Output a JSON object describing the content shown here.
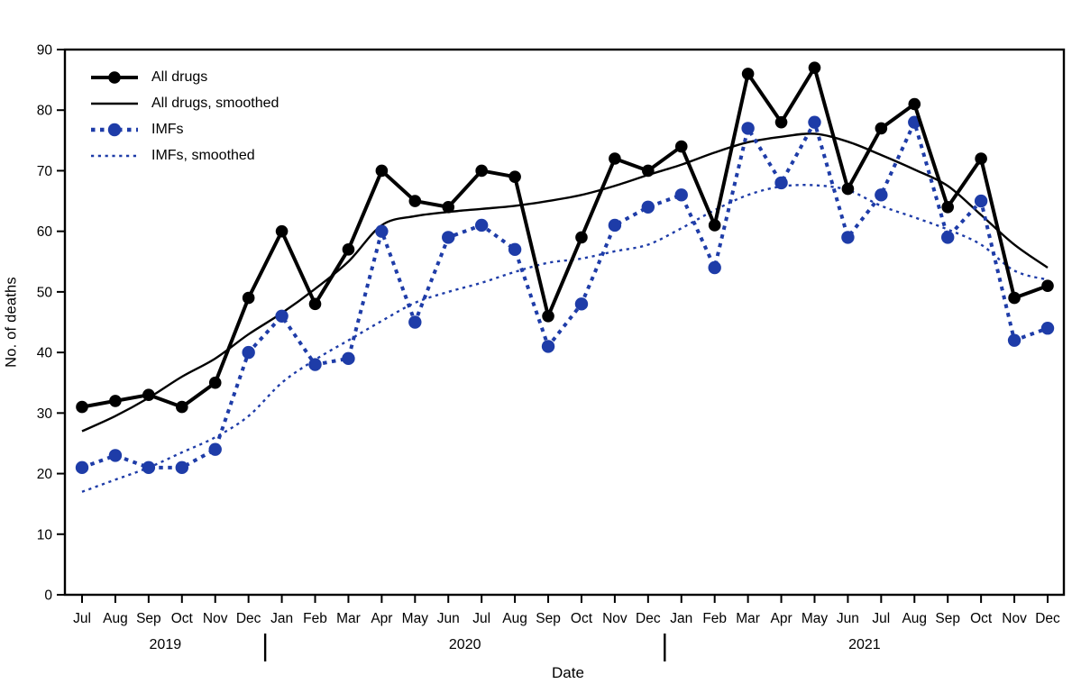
{
  "figure": {
    "y_axis_title": "No. of deaths",
    "x_axis_title": "Date"
  },
  "legend": {
    "items": [
      {
        "label": "All drugs"
      },
      {
        "label": "All drugs, smoothed"
      },
      {
        "label": "IMFs"
      },
      {
        "label": "IMFs, smoothed"
      }
    ]
  },
  "colors": {
    "black": "#000000",
    "imf_blue": "#1e3ca8"
  },
  "chart_data": {
    "type": "line",
    "title": "",
    "xlabel": "Date",
    "ylabel": "No. of deaths",
    "ylim": [
      0,
      90
    ],
    "y_ticks": [
      0,
      10,
      20,
      30,
      40,
      50,
      60,
      70,
      80,
      90
    ],
    "x_months": [
      "Jul",
      "Aug",
      "Sep",
      "Oct",
      "Nov",
      "Dec",
      "Jan",
      "Feb",
      "Mar",
      "Apr",
      "May",
      "Jun",
      "Jul",
      "Aug",
      "Sep",
      "Oct",
      "Nov",
      "Dec",
      "Jan",
      "Feb",
      "Mar",
      "Apr",
      "May",
      "Jun",
      "Jul",
      "Aug",
      "Sep",
      "Oct",
      "Nov",
      "Dec"
    ],
    "year_labels": [
      {
        "label": "2019",
        "at_month_index": 2.5
      },
      {
        "label": "2020",
        "at_month_index": 11.5
      },
      {
        "label": "2021",
        "at_month_index": 23.5
      }
    ],
    "year_separators_at_month_index": [
      5.5,
      17.5
    ],
    "legend_position": "top-left-inside",
    "grid": false,
    "series": [
      {
        "name": "All drugs",
        "color": "#000000",
        "line": "solid",
        "width": "thick",
        "markers": true,
        "values": [
          31,
          32,
          33,
          31,
          35,
          49,
          60,
          48,
          57,
          70,
          65,
          64,
          70,
          69,
          46,
          59,
          72,
          70,
          74,
          61,
          86,
          78,
          87,
          67,
          77,
          81,
          64,
          72,
          49,
          51
        ]
      },
      {
        "name": "All drugs, smoothed",
        "color": "#000000",
        "line": "solid",
        "width": "thin",
        "markers": false,
        "values": [
          27,
          29.5,
          32.5,
          36,
          39,
          43,
          46.5,
          50.5,
          55,
          61,
          62.5,
          63.2,
          63.7,
          64.2,
          65,
          66,
          67.5,
          69.3,
          71,
          73,
          74.7,
          75.6,
          76.1,
          74.8,
          72.6,
          70.2,
          67.5,
          62.7,
          57.8,
          54
        ]
      },
      {
        "name": "IMFs",
        "color": "#1e3ca8",
        "line": "dotted",
        "width": "thick",
        "markers": true,
        "values": [
          21,
          23,
          21,
          21,
          24,
          40,
          46,
          38,
          39,
          60,
          45,
          59,
          61,
          57,
          41,
          48,
          61,
          64,
          66,
          54,
          77,
          68,
          78,
          59,
          66,
          78,
          59,
          65,
          42,
          44
        ]
      },
      {
        "name": "IMFs, smoothed",
        "color": "#1e3ca8",
        "line": "dotted",
        "width": "thin",
        "markers": false,
        "values": [
          17,
          19,
          21,
          23.5,
          26,
          29.5,
          35,
          38.8,
          42,
          45.2,
          48.2,
          50,
          51.5,
          53.3,
          54.8,
          55.5,
          56.7,
          57.8,
          60.5,
          63.5,
          66,
          67.4,
          67.6,
          66.8,
          64.2,
          62.3,
          60.3,
          57.8,
          53.5,
          52
        ]
      }
    ]
  }
}
